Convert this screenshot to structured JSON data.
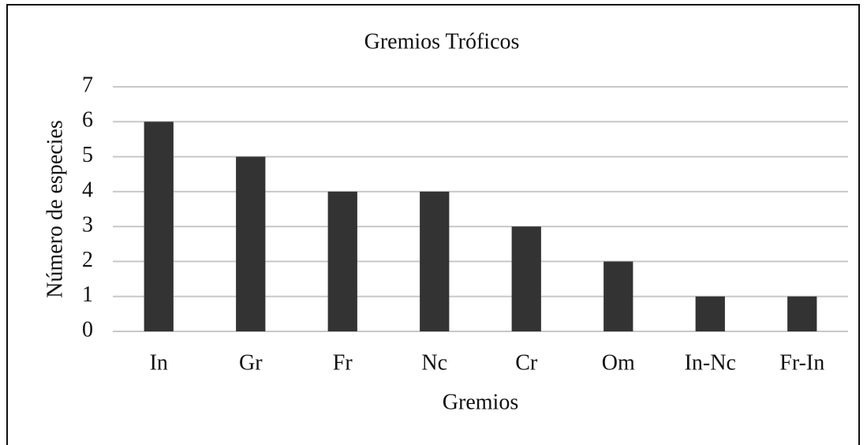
{
  "chart_data": {
    "type": "bar",
    "title": "Gremios Tróficos",
    "x_label": "Gremios",
    "y_label": "Número de especies",
    "categories": [
      "In",
      "Gr",
      "Fr",
      "Nc",
      "Cr",
      "Om",
      "In-Nc",
      "Fr-In"
    ],
    "values": [
      6,
      5,
      4,
      4,
      3,
      2,
      1,
      1
    ],
    "color": "#333333",
    "ylim": [
      0,
      7
    ],
    "yticks": [
      0,
      1,
      2,
      3,
      4,
      5,
      6,
      7
    ],
    "grid": true
  }
}
